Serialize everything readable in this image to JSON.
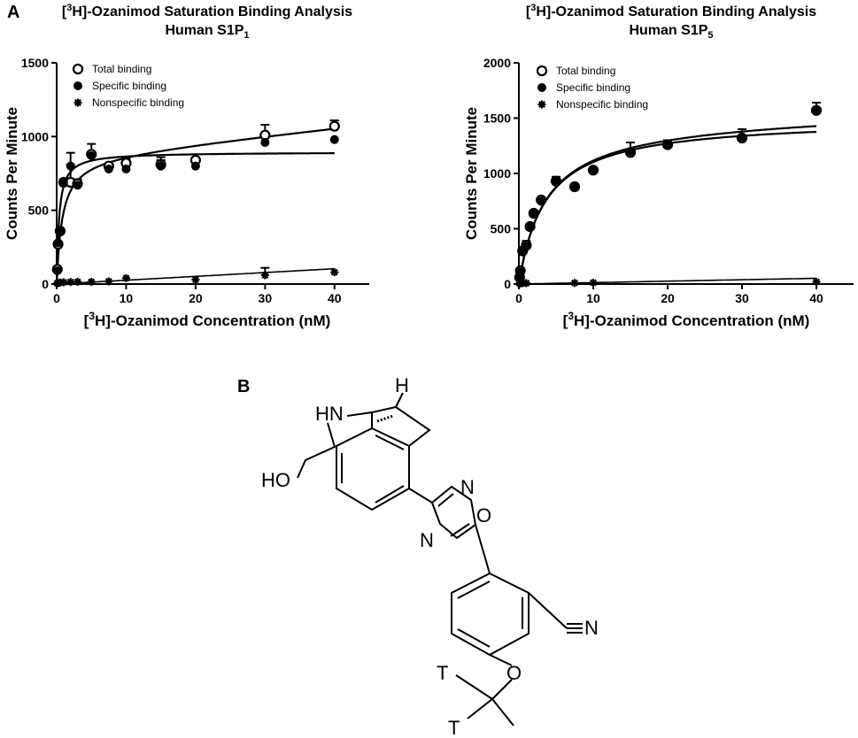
{
  "panels": {
    "a": "A",
    "b": "B"
  },
  "chart_data": [
    {
      "type": "scatter",
      "title_pre": "[",
      "title_sup": "3",
      "title_post": "H]-Ozanimod Saturation Binding Analysis",
      "subtitle_pre": "Human S1P",
      "subtitle_sub": "1",
      "xlabel_pre": "[",
      "xlabel_sup": "3",
      "xlabel_post": "H]-Ozanimod Concentration (nM)",
      "ylabel": "Counts Per Minute",
      "xlim": [
        0,
        45
      ],
      "ylim": [
        0,
        1500
      ],
      "xticks": [
        0,
        10,
        20,
        30,
        40
      ],
      "yticks": [
        0,
        500,
        1000,
        1500
      ],
      "legend_position": "top-left",
      "series": [
        {
          "name": "Total binding",
          "marker": "open-circle",
          "x": [
            0.1,
            0.2,
            0.5,
            1,
            2,
            3,
            5,
            7.5,
            10,
            15,
            20,
            30,
            40
          ],
          "y": [
            100,
            270,
            360,
            690,
            690,
            680,
            880,
            800,
            820,
            810,
            840,
            1010,
            1070
          ],
          "err": [
            0,
            0,
            0,
            0,
            120,
            30,
            70,
            0,
            30,
            50,
            0,
            70,
            40
          ]
        },
        {
          "name": "Specific binding",
          "marker": "filled-circle",
          "x": [
            0.1,
            0.2,
            0.5,
            1,
            2,
            3,
            5,
            7.5,
            10,
            15,
            20,
            30,
            40
          ],
          "y": [
            90,
            280,
            360,
            690,
            800,
            670,
            870,
            780,
            780,
            800,
            800,
            960,
            980
          ],
          "err": [
            0,
            0,
            0,
            0,
            90,
            0,
            0,
            0,
            0,
            40,
            0,
            0,
            0
          ]
        },
        {
          "name": "Nonspecific binding",
          "marker": "star",
          "x": [
            0.1,
            0.2,
            0.5,
            1,
            2,
            3,
            5,
            7.5,
            10,
            20,
            30,
            40
          ],
          "y": [
            5,
            8,
            10,
            12,
            14,
            15,
            15,
            18,
            40,
            30,
            60,
            80
          ],
          "err": [
            0,
            0,
            0,
            0,
            0,
            0,
            0,
            0,
            0,
            0,
            50,
            0
          ]
        }
      ],
      "fits": [
        {
          "kind": "total",
          "bmax": 870,
          "kd": 0.8,
          "ns": 5.0
        },
        {
          "kind": "specific",
          "bmax": 895,
          "kd": 0.35,
          "ns": 0
        },
        {
          "kind": "nonspecific",
          "bmax": 0,
          "kd": 1,
          "ns": 2.6
        }
      ]
    },
    {
      "type": "scatter",
      "title_pre": "[",
      "title_sup": "3",
      "title_post": "H]-Ozanimod Saturation Binding Analysis",
      "subtitle_pre": "Human S1P",
      "subtitle_sub": "5",
      "xlabel_pre": "[",
      "xlabel_sup": "3",
      "xlabel_post": "H]-Ozanimod Concentration (nM)",
      "ylabel": "Counts Per Minute",
      "xlim": [
        0,
        45
      ],
      "ylim": [
        0,
        2000
      ],
      "xticks": [
        0,
        10,
        20,
        30,
        40
      ],
      "yticks": [
        0,
        500,
        1000,
        1500,
        2000
      ],
      "legend_position": "top-left",
      "series": [
        {
          "name": "Total binding",
          "marker": "open-circle",
          "x": [
            0.1,
            0.2,
            0.5,
            1,
            1.5,
            2,
            3,
            5,
            7.5,
            10,
            15,
            20,
            30,
            40
          ],
          "y": [
            60,
            120,
            300,
            350,
            520,
            640,
            760,
            930,
            880,
            1030,
            1190,
            1260,
            1320,
            1570
          ],
          "err": [
            0,
            0,
            0,
            40,
            0,
            0,
            0,
            40,
            0,
            0,
            90,
            40,
            80,
            70
          ]
        },
        {
          "name": "Specific binding",
          "marker": "filled-circle",
          "x": [
            0.1,
            0.2,
            0.5,
            1,
            1.5,
            2,
            3,
            5,
            7.5,
            10,
            15,
            20,
            30,
            40
          ],
          "y": [
            50,
            110,
            290,
            340,
            520,
            640,
            750,
            930,
            880,
            1030,
            1200,
            1260,
            1330,
            1570
          ],
          "err": [
            0,
            0,
            0,
            0,
            0,
            0,
            0,
            0,
            0,
            0,
            0,
            0,
            0,
            0
          ]
        },
        {
          "name": "Nonspecific binding",
          "marker": "star",
          "x": [
            0.1,
            0.2,
            0.5,
            1,
            7.5,
            10,
            40
          ],
          "y": [
            5,
            6,
            8,
            8,
            10,
            12,
            20
          ],
          "err": [
            0,
            0,
            0,
            0,
            0,
            0,
            0
          ]
        }
      ],
      "fits": [
        {
          "kind": "total",
          "bmax": 1500,
          "kd": 3.6,
          "ns": 1.3
        },
        {
          "kind": "specific",
          "bmax": 1500,
          "kd": 3.6,
          "ns": 0
        },
        {
          "kind": "nonspecific",
          "bmax": 0,
          "kd": 1,
          "ns": 1.3
        }
      ]
    }
  ],
  "structure": {
    "atoms": {
      "hn": "HN",
      "h": "H",
      "ho": "HO",
      "o_ring": "O",
      "n_top": "N",
      "n_bottom": "N",
      "n_cn": "N",
      "o_ether": "O",
      "t1": "T",
      "t2": "T"
    }
  }
}
